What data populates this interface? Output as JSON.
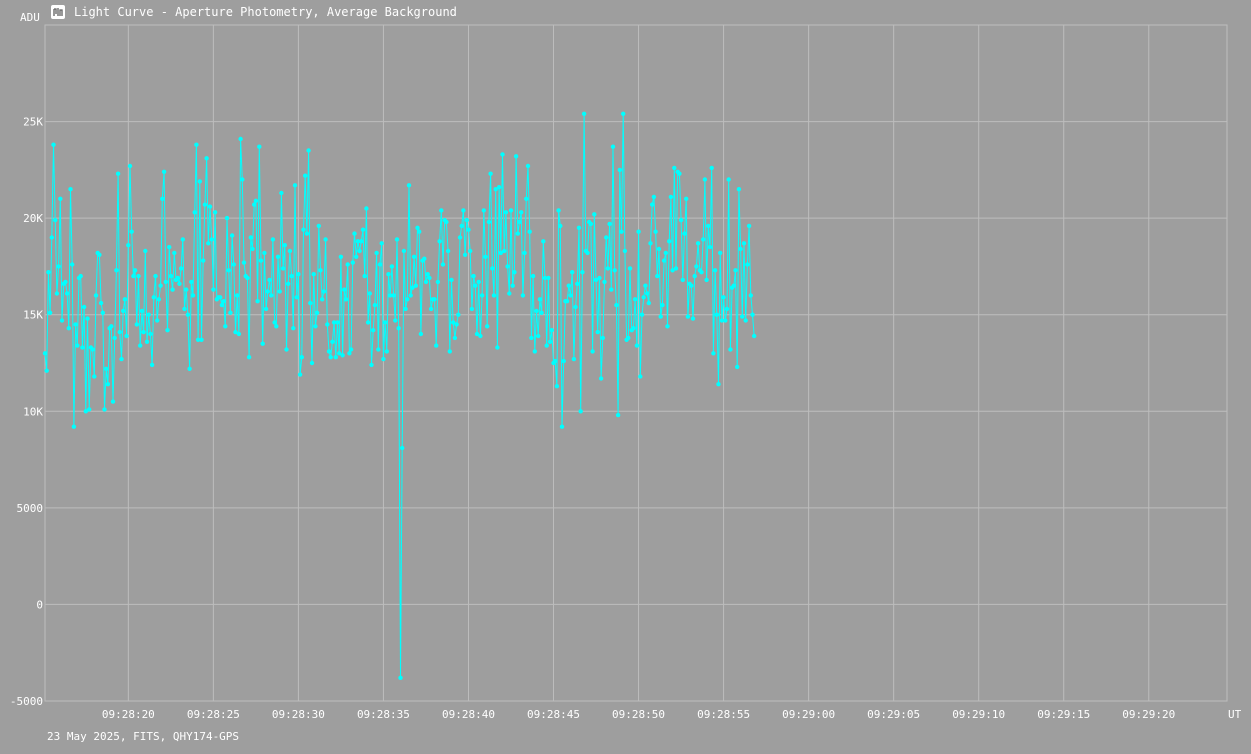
{
  "window": {
    "title": "Light Curve - Aperture Photometry, Average Background",
    "footer": "23 May 2025, FITS, QHY174-GPS"
  },
  "colors": {
    "background": "#9e9e9e",
    "grid": "#bdbdbd",
    "series": "#00ffff",
    "text": "#ffffff"
  },
  "chart_data": {
    "type": "line",
    "title": "Light Curve - Aperture Photometry, Average Background",
    "ylabel": "ADU",
    "xlabel": "UT",
    "ylim": [
      -5000,
      30000
    ],
    "xlim": [
      "09:28:15.1",
      "09:29:24.6"
    ],
    "grid": true,
    "y_ticks": [
      {
        "value": -5000,
        "label": "-5000"
      },
      {
        "value": 0,
        "label": "0"
      },
      {
        "value": 5000,
        "label": "5000"
      },
      {
        "value": 10000,
        "label": "10K"
      },
      {
        "value": 15000,
        "label": "15K"
      },
      {
        "value": 20000,
        "label": "20K"
      },
      {
        "value": 25000,
        "label": "25K"
      }
    ],
    "x_ticks": [
      "09:28:20",
      "09:28:25",
      "09:28:30",
      "09:28:35",
      "09:28:40",
      "09:28:45",
      "09:28:50",
      "09:28:55",
      "09:29:00",
      "09:29:05",
      "09:29:10",
      "09:29:15",
      "09:29:20"
    ],
    "series": [
      {
        "color": "#00ffff",
        "x_start": "09:28:15.1",
        "x_step_s": 0.1,
        "values": [
          13000,
          12100,
          17200,
          15100,
          19000,
          23800,
          19900,
          16100,
          17500,
          21000,
          14700,
          16600,
          16700,
          16100,
          14300,
          21500,
          17600,
          9200,
          14500,
          13400,
          16900,
          17000,
          13300,
          15400,
          10000,
          14800,
          10100,
          13300,
          13200,
          11800,
          16000,
          18200,
          18100,
          15600,
          15100,
          10100,
          12200,
          11400,
          14300,
          14400,
          10500,
          13800,
          17300,
          22300,
          14100,
          12700,
          15200,
          15800,
          13900,
          18600,
          22700,
          19300,
          17000,
          17300,
          14500,
          17000,
          13400,
          15200,
          14100,
          18300,
          13600,
          15000,
          14000,
          12400,
          15900,
          17000,
          14700,
          15800,
          16500,
          21000,
          22400,
          16700,
          14200,
          18500,
          17000,
          16300,
          18200,
          16800,
          16900,
          16600,
          17400,
          18900,
          15300,
          16300,
          15000,
          12200,
          16700,
          16000,
          20300,
          23800,
          13700,
          21900,
          13700,
          17800,
          20700,
          23100,
          18700,
          20600,
          18900,
          16300,
          20300,
          15800,
          15900,
          15900,
          15500,
          15700,
          14400,
          20000,
          17300,
          15100,
          19100,
          17600,
          14100,
          16000,
          14000,
          24100,
          22000,
          17700,
          17000,
          16900,
          12800,
          19000,
          18400,
          20700,
          20900,
          15700,
          23700,
          17800,
          13500,
          18200,
          15300,
          16200,
          16800,
          16000,
          18900,
          14600,
          14400,
          18000,
          16200,
          21300,
          17400,
          18600,
          13200,
          16600,
          18300,
          17000,
          14300,
          21700,
          15900,
          17100,
          11900,
          12800,
          19400,
          22200,
          19200,
          23500,
          15600,
          12500,
          17100,
          14400,
          15100,
          19600,
          17300,
          15800,
          16200,
          18900,
          14500,
          13100,
          12800,
          13600,
          14600,
          12800,
          14600,
          13000,
          18000,
          12900,
          16300,
          15800,
          17600,
          13000,
          13200,
          17700,
          19200,
          18000,
          18800,
          18300,
          18800,
          19400,
          17000,
          20500,
          14600,
          16100,
          12400,
          14200,
          15500,
          18200,
          13200,
          17600,
          18700,
          12700,
          14600,
          13100,
          17100,
          16000,
          17500,
          16000,
          14700,
          18900,
          14300,
          -3800,
          8100,
          18300,
          15300,
          15800,
          21700,
          16000,
          16400,
          18000,
          16500,
          19500,
          19300,
          14000,
          17800,
          17900,
          16700,
          17100,
          16900,
          15300,
          15800,
          15800,
          13400,
          16700,
          18800,
          20400,
          17600,
          19900,
          19800,
          18300,
          13100,
          16800,
          14600,
          13800,
          14500,
          15000,
          19000,
          19600,
          20400,
          18100,
          19900,
          19400,
          18300,
          15300,
          17000,
          16500,
          14000,
          16700,
          13900,
          16000,
          20400,
          18000,
          14400,
          19800,
          22300,
          17400,
          16000,
          21500,
          13300,
          21600,
          18200,
          23300,
          18300,
          20300,
          17500,
          16100,
          20400,
          16500,
          17200,
          23200,
          19200,
          19800,
          20300,
          16000,
          18200,
          21000,
          22700,
          19300,
          13800,
          17000,
          13100,
          15200,
          13900,
          15800,
          15100,
          18800,
          16900,
          13400,
          16900,
          13600,
          14200,
          12500,
          12600,
          11300,
          20400,
          19600,
          9200,
          12600,
          15700,
          15700,
          16500,
          16000,
          17200,
          12700,
          15400,
          16600,
          19500,
          10000,
          17200,
          25400,
          18300,
          18200,
          19800,
          19700,
          13100,
          20200,
          16800,
          14100,
          16900,
          11700,
          13800,
          16700,
          19000,
          17400,
          19700,
          16300,
          23700,
          17300,
          15500,
          9800,
          22500,
          19300,
          25400,
          18300,
          13700,
          13800,
          17400,
          14200,
          14300,
          15800,
          13400,
          19300,
          11800,
          15000,
          15900,
          16500,
          16100,
          15600,
          18700,
          20700,
          21100,
          19300,
          17000,
          18400,
          14900,
          15500,
          17800,
          18200,
          14400,
          18800,
          21100,
          17300,
          22600,
          17400,
          22400,
          22300,
          19900,
          16800,
          19200,
          21000,
          14900,
          16600,
          16500,
          14800,
          17000,
          17500,
          18700,
          17300,
          17200,
          18900,
          22000,
          16800,
          19600,
          18500,
          22600,
          13000,
          17300,
          15000,
          11400,
          18200,
          14700,
          15900,
          14700,
          15300,
          22000,
          13200,
          16400,
          16500,
          17300,
          12300,
          21500,
          18400,
          14900,
          18700,
          14700,
          17600,
          19600,
          16000,
          15000,
          13900
        ]
      }
    ]
  }
}
